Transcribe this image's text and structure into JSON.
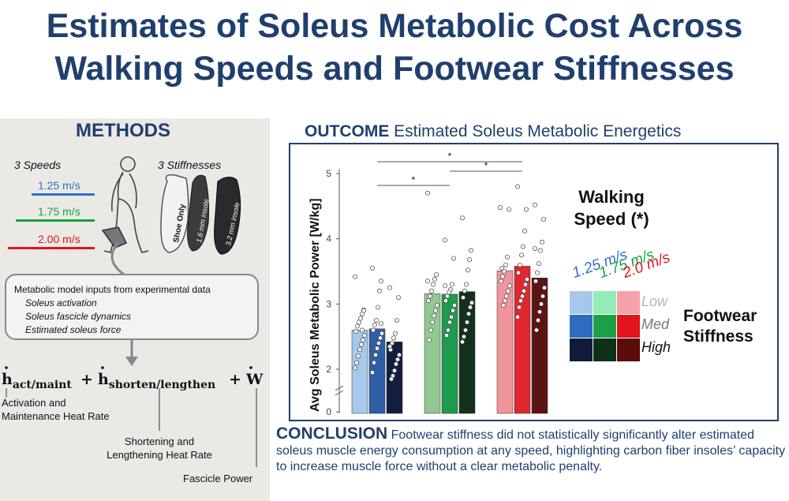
{
  "title_line1": "Estimates of Soleus Metabolic Cost Across",
  "title_line2": "Walking Speeds and Footwear Stiffnesses",
  "methods": {
    "heading": "METHODS",
    "speeds_label": "3 Speeds",
    "stiffness_label": "3 Stiffnesses",
    "speeds": [
      {
        "label": "1.25 m/s",
        "color": "#2f6fc9"
      },
      {
        "label": "1.75 m/s",
        "color": "#17a33a"
      },
      {
        "label": "2.00 m/s",
        "color": "#e0141e"
      }
    ],
    "insoles": [
      "Shoe Only",
      "1.6 mm insole",
      "3.2 mm insole"
    ],
    "inputs_title": "Metabolic model inputs from experimental data",
    "inputs": [
      "Soleus activation",
      "Soleus fascicle dynamics",
      "Estimated soleus force"
    ],
    "equation": {
      "term1": "act/maint",
      "term2": "shorten/lengthen",
      "plus": "+",
      "h": "h",
      "w": "W"
    },
    "annotations": {
      "act_line1": "Activation and",
      "act_line2": "Maintenance Heat Rate",
      "sl_line1": "Shortening and",
      "sl_line2": "Lengthening Heat Rate",
      "fascicle": "Fascicle Power"
    }
  },
  "outcome": {
    "heading_bold": "OUTCOME",
    "heading_rest": " Estimated Soleus Metabolic Energetics"
  },
  "chart_data": {
    "type": "bar",
    "ylabel": "Avg Soleus Metabolic Power [W/kg]",
    "ylim": [
      0,
      5
    ],
    "y_ticks": [
      "0",
      "2",
      "3",
      "4",
      "5"
    ],
    "axis_break": true,
    "groups": [
      {
        "speed": "1.25 m/s",
        "bars": [
          {
            "stiffness": "Low",
            "value": 2.6,
            "color": "#a7c8ea",
            "points": [
              3.42,
              2.91,
              2.85,
              2.78,
              2.72,
              2.66,
              2.58,
              2.52,
              2.45,
              2.38,
              2.3,
              2.2,
              2.1,
              2.02,
              2.9,
              2.6
            ]
          },
          {
            "stiffness": "Med",
            "value": 2.62,
            "color": "#2e5ea6",
            "points": [
              3.55,
              3.35,
              3.2,
              2.95,
              2.75,
              2.68,
              2.6,
              2.55,
              2.48,
              2.4,
              2.32,
              2.22,
              2.1,
              1.95,
              2.7
            ]
          },
          {
            "stiffness": "High",
            "value": 2.42,
            "color": "#131e3e",
            "points": [
              3.25,
              3.1,
              2.75,
              2.55,
              2.48,
              2.4,
              2.3,
              2.22,
              2.15,
              2.08,
              1.98,
              1.9,
              1.85,
              2.35
            ]
          }
        ]
      },
      {
        "speed": "1.75 m/s",
        "bars": [
          {
            "stiffness": "Low",
            "value": 3.16,
            "color": "#93c893",
            "points": [
              4.7,
              3.45,
              3.38,
              3.3,
              3.2,
              3.12,
              3.05,
              2.98,
              2.9,
              2.82,
              2.72,
              2.6,
              2.45,
              3.35
            ]
          },
          {
            "stiffness": "Med",
            "value": 3.15,
            "color": "#1d9a4c",
            "points": [
              3.98,
              3.7,
              3.3,
              3.22,
              3.18,
              3.12,
              3.05,
              2.98,
              2.9,
              2.8,
              2.72,
              2.6,
              2.52,
              3.28
            ]
          },
          {
            "stiffness": "High",
            "value": 3.19,
            "color": "#13301c",
            "points": [
              4.32,
              3.82,
              3.68,
              3.52,
              3.3,
              3.2,
              3.1,
              3.02,
              2.95,
              2.85,
              2.72,
              2.6,
              2.5,
              2.42
            ]
          }
        ]
      },
      {
        "speed": "2.0 m/s",
        "bars": [
          {
            "stiffness": "Low",
            "value": 3.51,
            "color": "#f0959a",
            "points": [
              4.48,
              4.45,
              3.72,
              3.6,
              3.5,
              3.42,
              3.35,
              3.28,
              3.2,
              3.12,
              3.05,
              2.98,
              3.55
            ]
          },
          {
            "stiffness": "Med",
            "value": 3.58,
            "color": "#e0272d",
            "points": [
              4.8,
              4.45,
              4.12,
              3.88,
              3.75,
              3.6,
              3.48,
              3.38,
              3.3,
              3.2,
              3.12,
              3.05,
              2.95,
              2.8
            ]
          },
          {
            "stiffness": "High",
            "value": 3.4,
            "color": "#5a1414",
            "points": [
              4.52,
              4.3,
              3.95,
              3.82,
              3.62,
              3.48,
              3.35,
              3.25,
              3.12,
              3.0,
              2.88,
              2.75,
              2.6,
              3.85
            ]
          }
        ]
      }
    ],
    "significance": [
      {
        "from_group": 0,
        "to_group": 2,
        "label": "*"
      },
      {
        "from_group": 1,
        "to_group": 2,
        "label": "*"
      },
      {
        "from_group": 0,
        "to_group": 1,
        "label": "*"
      }
    ]
  },
  "legend": {
    "speed_title_line1": "Walking",
    "speed_title_line2": "Speed (*)",
    "speeds": [
      {
        "label": "1.25 m/s",
        "color": "#2f6fc9"
      },
      {
        "label": "1.75 m/s",
        "color": "#17a33a"
      },
      {
        "label": "2.0 m/s",
        "color": "#e0141e"
      }
    ],
    "stiffness_title_line1": "Footwear",
    "stiffness_title_line2": "Stiffness",
    "levels": [
      {
        "label": "Low",
        "color": "#b5b5b5"
      },
      {
        "label": "Med",
        "color": "#777777"
      },
      {
        "label": "High",
        "color": "#111111"
      }
    ],
    "grid": [
      [
        "#a7c8ea",
        "#93ecb5",
        "#f5a3a8"
      ],
      [
        "#2e6cc0",
        "#1ea04b",
        "#e2141b"
      ],
      [
        "#0f1d3a",
        "#0d3019",
        "#5c0b0b"
      ]
    ]
  },
  "conclusion": {
    "heading": "CONCLUSION",
    "text": " Footwear stiffness did not statistically significantly alter estimated soleus muscle energy consumption at any speed, highlighting carbon fiber insoles’ capacity to increase muscle force without a clear metabolic penalty."
  }
}
